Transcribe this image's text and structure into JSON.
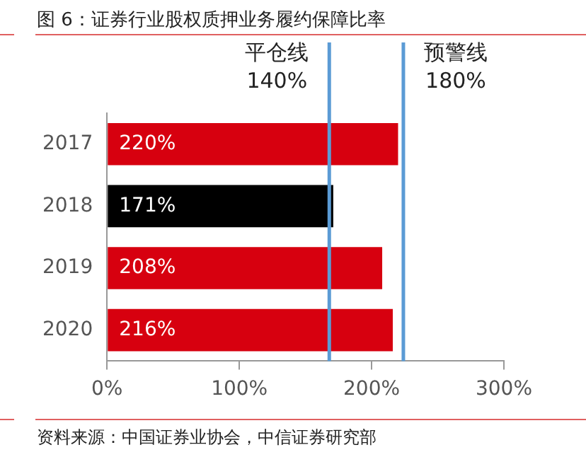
{
  "chart_data": {
    "type": "bar",
    "orientation": "horizontal",
    "title": "图 6：证券行业股权质押业务履约保障比率",
    "categories": [
      "2017",
      "2018",
      "2019",
      "2020"
    ],
    "values": [
      220,
      171,
      208,
      216
    ],
    "colors": [
      "#d7000f",
      "#000000",
      "#d7000f",
      "#d7000f"
    ],
    "value_labels": [
      "220%",
      "171%",
      "208%",
      "216%"
    ],
    "xlim": [
      0,
      300
    ],
    "xticks": [
      {
        "value": 0,
        "label": "0%"
      },
      {
        "value": 100,
        "label": "100%"
      },
      {
        "value": 200,
        "label": "200%"
      },
      {
        "value": 300,
        "label": "300%"
      }
    ],
    "grid": false,
    "legend": false,
    "ref_lines": [
      {
        "axis": "x",
        "value": 168,
        "label": "平仓线\n140%",
        "color": "#5b9bd5"
      },
      {
        "axis": "x",
        "value": 224,
        "label": "预警线\n180%",
        "color": "#5b9bd5"
      }
    ],
    "annotations": [
      "资料来源：中国证券业协会，中信证券研究部"
    ]
  }
}
